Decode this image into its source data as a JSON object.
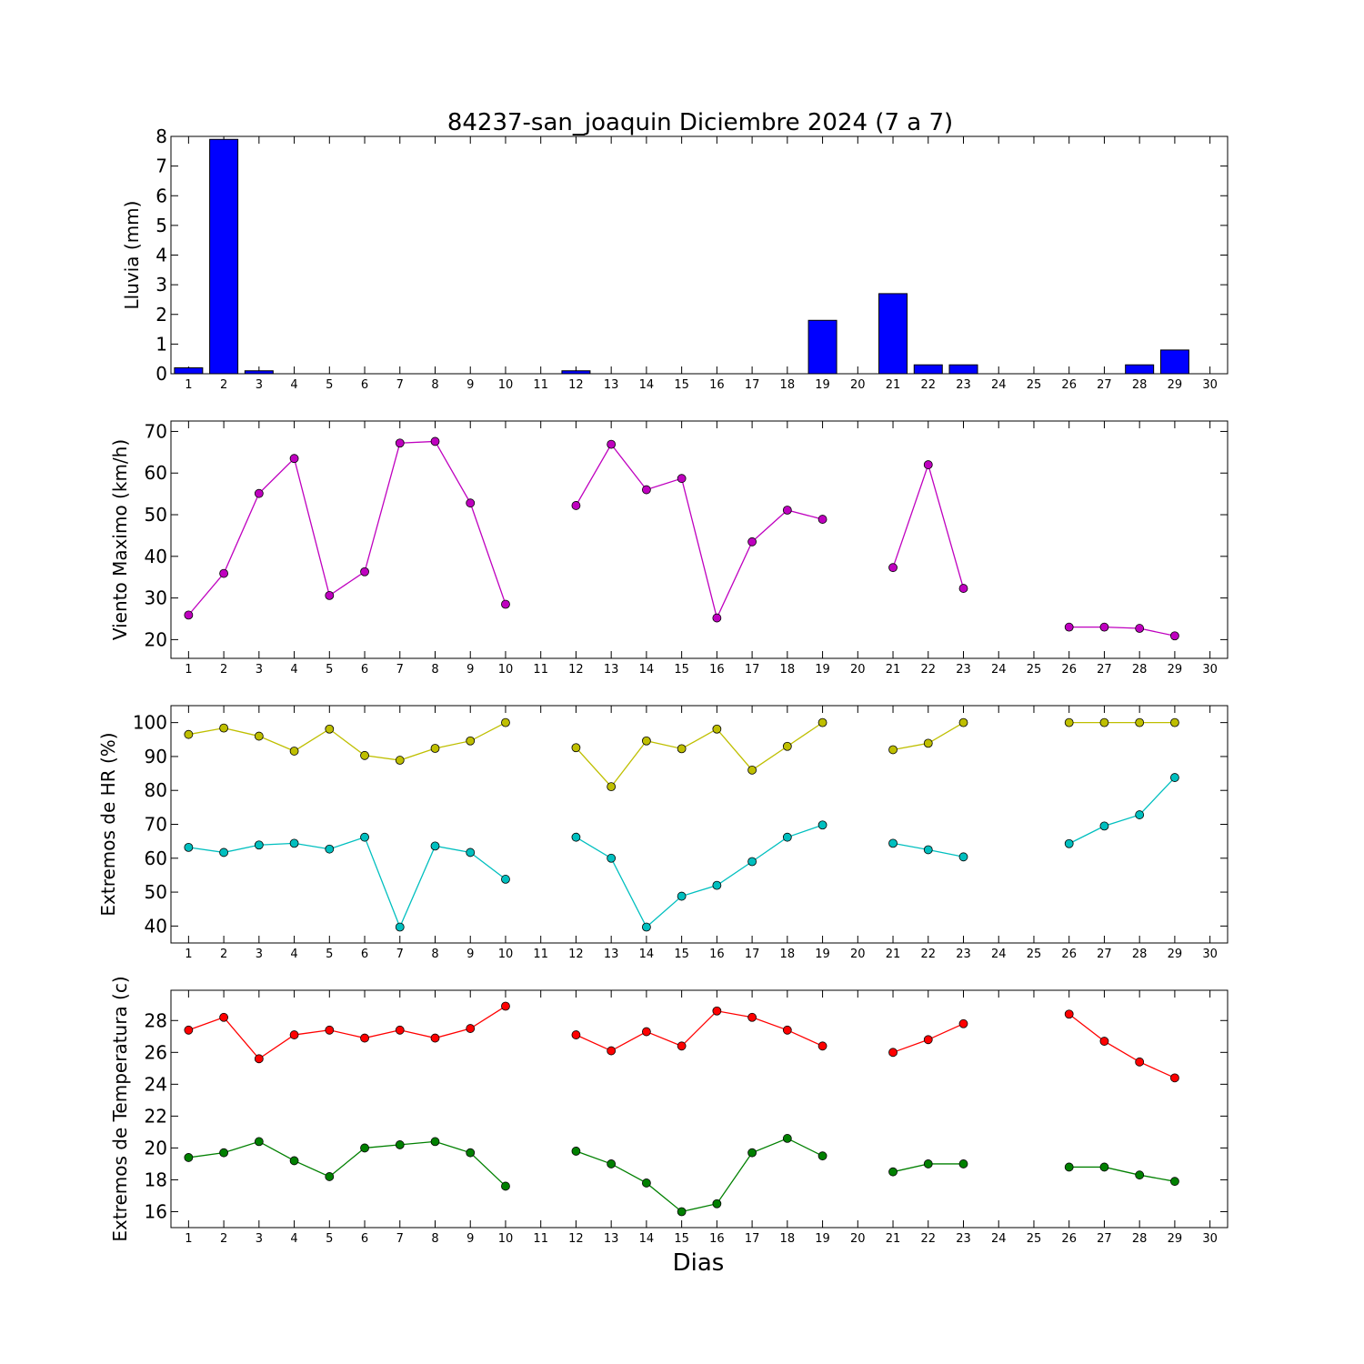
{
  "figure": {
    "title": "84237-san_joaquin Diciembre 2024  (7 a 7)",
    "xlabel": "Dias"
  },
  "chart_data": [
    {
      "type": "bar",
      "name": "rain",
      "ylabel": "Lluvia (mm)",
      "xlim": [
        0.5,
        30.5
      ],
      "ylim": [
        0,
        8
      ],
      "yticks": [
        0,
        1,
        2,
        3,
        4,
        5,
        6,
        7,
        8
      ],
      "xticks": [
        1,
        2,
        3,
        4,
        5,
        6,
        7,
        8,
        9,
        10,
        11,
        12,
        13,
        14,
        15,
        16,
        17,
        18,
        19,
        20,
        21,
        22,
        23,
        24,
        25,
        26,
        27,
        28,
        29,
        30
      ],
      "color": "#0000ff",
      "series": [
        {
          "x": [
            1,
            2,
            3,
            4,
            5,
            6,
            7,
            8,
            9,
            10,
            11,
            12,
            13,
            14,
            15,
            16,
            17,
            18,
            19,
            20,
            21,
            22,
            23,
            24,
            25,
            26,
            27,
            28,
            29,
            30
          ],
          "values": [
            0.2,
            7.9,
            0.1,
            0,
            0,
            0,
            0,
            0,
            0,
            0,
            null,
            0.1,
            0,
            0,
            0,
            0,
            0,
            0,
            1.8,
            null,
            2.7,
            0.3,
            0.3,
            null,
            null,
            0,
            0,
            0.3,
            0.8,
            null
          ]
        }
      ]
    },
    {
      "type": "line",
      "name": "wind",
      "ylabel": "Viento Maximo (km/h)",
      "xlim": [
        0.5,
        30.5
      ],
      "ylim": [
        15.5,
        72.5
      ],
      "yticks": [
        20,
        30,
        40,
        50,
        60,
        70
      ],
      "xticks": [
        1,
        2,
        3,
        4,
        5,
        6,
        7,
        8,
        9,
        10,
        11,
        12,
        13,
        14,
        15,
        16,
        17,
        18,
        19,
        20,
        21,
        22,
        23,
        24,
        25,
        26,
        27,
        28,
        29,
        30
      ],
      "series": [
        {
          "color": "#bf00bf",
          "x": [
            1,
            2,
            3,
            4,
            5,
            6,
            7,
            8,
            9,
            10,
            11,
            12,
            13,
            14,
            15,
            16,
            17,
            18,
            19,
            20,
            21,
            22,
            23,
            24,
            25,
            26,
            27,
            28,
            29,
            30
          ],
          "values": [
            25.9,
            35.9,
            55.1,
            63.5,
            30.6,
            36.3,
            67.2,
            67.6,
            52.8,
            28.5,
            null,
            52.2,
            66.9,
            56.0,
            58.7,
            25.2,
            43.5,
            51.1,
            48.9,
            null,
            37.3,
            62.0,
            32.3,
            null,
            null,
            23.0,
            23.0,
            22.7,
            20.9,
            null
          ]
        }
      ]
    },
    {
      "type": "line",
      "name": "humidity",
      "ylabel": "Extremos de HR (%)",
      "xlim": [
        0.5,
        30.5
      ],
      "ylim": [
        35,
        105
      ],
      "yticks": [
        40,
        50,
        60,
        70,
        80,
        90,
        100
      ],
      "xticks": [
        1,
        2,
        3,
        4,
        5,
        6,
        7,
        8,
        9,
        10,
        11,
        12,
        13,
        14,
        15,
        16,
        17,
        18,
        19,
        20,
        21,
        22,
        23,
        24,
        25,
        26,
        27,
        28,
        29,
        30
      ],
      "series": [
        {
          "color": "#bfbf00",
          "x": [
            1,
            2,
            3,
            4,
            5,
            6,
            7,
            8,
            9,
            10,
            11,
            12,
            13,
            14,
            15,
            16,
            17,
            18,
            19,
            20,
            21,
            22,
            23,
            24,
            25,
            26,
            27,
            28,
            29,
            30
          ],
          "values": [
            96.5,
            98.4,
            96.0,
            91.6,
            98.1,
            90.3,
            88.9,
            92.4,
            94.6,
            100,
            null,
            92.6,
            81.1,
            94.6,
            92.3,
            98.1,
            86.0,
            93.0,
            100,
            null,
            92.0,
            93.9,
            100,
            null,
            null,
            100,
            100,
            100,
            100,
            null
          ]
        },
        {
          "color": "#00bfbf",
          "x": [
            1,
            2,
            3,
            4,
            5,
            6,
            7,
            8,
            9,
            10,
            11,
            12,
            13,
            14,
            15,
            16,
            17,
            18,
            19,
            20,
            21,
            22,
            23,
            24,
            25,
            26,
            27,
            28,
            29,
            30
          ],
          "values": [
            63.2,
            61.7,
            63.9,
            64.4,
            62.7,
            66.2,
            39.7,
            63.6,
            61.7,
            53.8,
            null,
            66.2,
            60.0,
            39.7,
            48.8,
            52.0,
            59.0,
            66.2,
            69.8,
            null,
            64.4,
            62.5,
            60.4,
            null,
            null,
            64.3,
            69.5,
            72.8,
            83.8,
            null
          ]
        }
      ]
    },
    {
      "type": "line",
      "name": "temperature",
      "ylabel": "Extremos de Temperatura (c)",
      "xlim": [
        0.5,
        30.5
      ],
      "ylim": [
        15,
        29.9
      ],
      "yticks": [
        16,
        18,
        20,
        22,
        24,
        26,
        28
      ],
      "xticks": [
        1,
        2,
        3,
        4,
        5,
        6,
        7,
        8,
        9,
        10,
        11,
        12,
        13,
        14,
        15,
        16,
        17,
        18,
        19,
        20,
        21,
        22,
        23,
        24,
        25,
        26,
        27,
        28,
        29,
        30
      ],
      "series": [
        {
          "color": "#ff0000",
          "x": [
            1,
            2,
            3,
            4,
            5,
            6,
            7,
            8,
            9,
            10,
            11,
            12,
            13,
            14,
            15,
            16,
            17,
            18,
            19,
            20,
            21,
            22,
            23,
            24,
            25,
            26,
            27,
            28,
            29,
            30
          ],
          "values": [
            27.4,
            28.2,
            25.6,
            27.1,
            27.4,
            26.9,
            27.4,
            26.9,
            27.5,
            28.9,
            null,
            27.1,
            26.1,
            27.3,
            26.4,
            28.6,
            28.2,
            27.4,
            26.4,
            null,
            26.0,
            26.8,
            27.8,
            null,
            null,
            28.4,
            26.7,
            25.4,
            24.4,
            null
          ]
        },
        {
          "color": "#008000",
          "x": [
            1,
            2,
            3,
            4,
            5,
            6,
            7,
            8,
            9,
            10,
            11,
            12,
            13,
            14,
            15,
            16,
            17,
            18,
            19,
            20,
            21,
            22,
            23,
            24,
            25,
            26,
            27,
            28,
            29,
            30
          ],
          "values": [
            19.4,
            19.7,
            20.4,
            19.2,
            18.2,
            20.0,
            20.2,
            20.4,
            19.7,
            17.6,
            null,
            19.8,
            19.0,
            17.8,
            16.0,
            16.5,
            19.7,
            20.6,
            19.5,
            null,
            18.5,
            19.0,
            19.0,
            null,
            null,
            18.8,
            18.8,
            18.3,
            17.9,
            null
          ]
        }
      ]
    }
  ]
}
